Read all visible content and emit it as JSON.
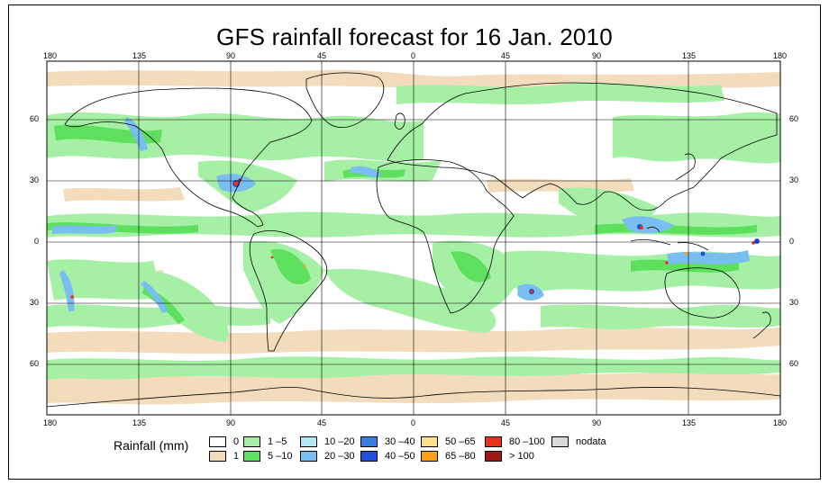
{
  "title": "GFS rainfall forecast for 16 Jan. 2010",
  "axes": {
    "top_longitudes": [
      "180",
      "135",
      "90",
      "45",
      "0",
      "45",
      "90",
      "135",
      "180"
    ],
    "bottom_longitudes": [
      "180",
      "135",
      "90",
      "45",
      "0",
      "45",
      "90",
      "135",
      "180"
    ],
    "left_latitudes": [
      "60",
      "30",
      "0",
      "30",
      "60"
    ],
    "right_latitudes": [
      "60",
      "30",
      "0",
      "30",
      "60"
    ]
  },
  "legend": {
    "title": "Rainfall (mm)",
    "items": [
      {
        "label": "0",
        "color": "#ffffff"
      },
      {
        "label": "1",
        "color": "#f2dcbc"
      },
      {
        "label": "1 –5",
        "color": "#a6f0a6"
      },
      {
        "label": "5 –10",
        "color": "#5ee05e"
      },
      {
        "label": "10 –20",
        "color": "#b4e8f6"
      },
      {
        "label": "20 –30",
        "color": "#78bef0"
      },
      {
        "label": "30 –40",
        "color": "#3a7fe0"
      },
      {
        "label": "40 –50",
        "color": "#1f4fd6"
      },
      {
        "label": "50 –65",
        "color": "#fde08a"
      },
      {
        "label": "65 –80",
        "color": "#f8a018"
      },
      {
        "label": "80 –100",
        "color": "#e8301a"
      },
      {
        "label": "> 100",
        "color": "#a01818"
      },
      {
        "label": "nodata",
        "color": "#d8d8d8"
      }
    ]
  },
  "colors": {
    "light_green": "#a6f0a6",
    "green": "#5ee05e",
    "tan": "#f2dcbc",
    "light_blue": "#b4e8f6",
    "blue": "#78bef0",
    "dark_blue": "#1f4fd6",
    "red": "#e8301a",
    "dark_red": "#a01818",
    "orange": "#f8a018"
  }
}
